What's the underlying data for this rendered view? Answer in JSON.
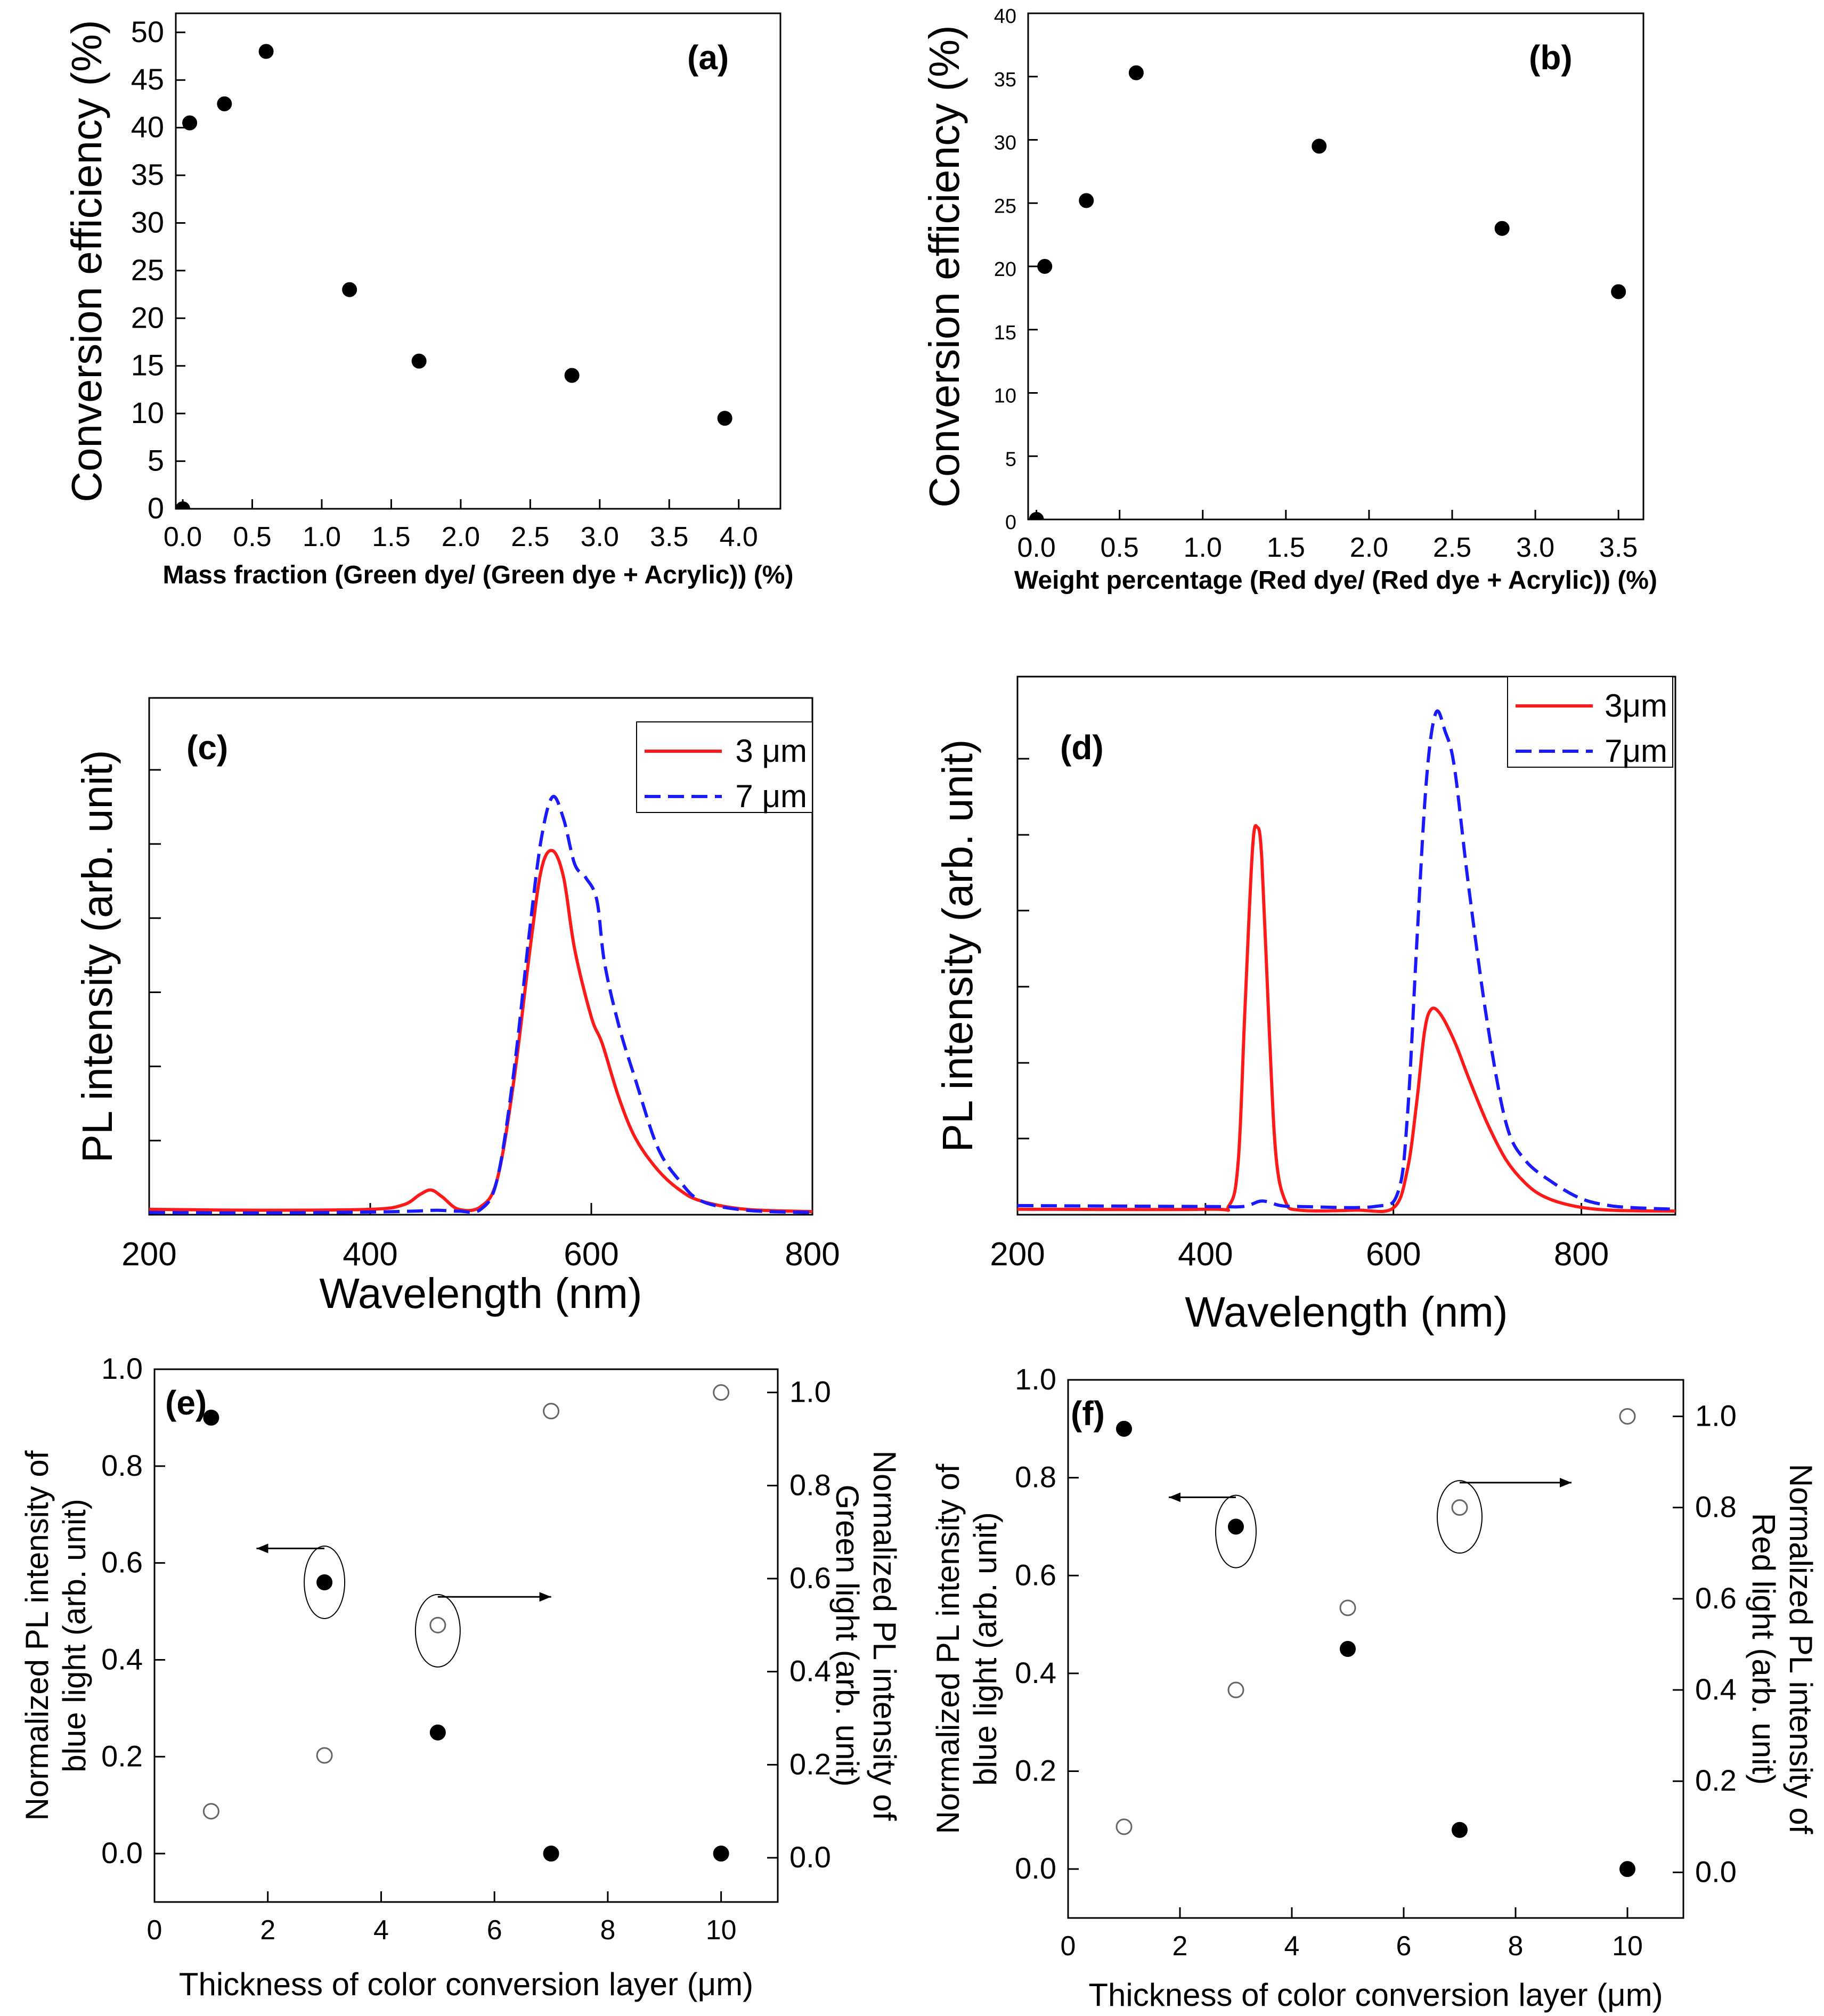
{
  "chart_data": [
    {
      "id": "a",
      "type": "scatter",
      "panel_label": "(a)",
      "xlabel": "Mass fraction (Green dye/ (Green dye + Acrylic)) (%)",
      "ylabel": "Conversion efficiency (%)",
      "xlim": [
        -0.05,
        4.3
      ],
      "ylim": [
        0,
        52
      ],
      "xticks": [
        0.0,
        0.5,
        1.0,
        1.5,
        2.0,
        2.5,
        3.0,
        3.5,
        4.0
      ],
      "xtick_labels": [
        "0.0",
        "0.5",
        "1.0",
        "1.5",
        "2.0",
        "2.5",
        "3.0",
        "3.5",
        "4.0"
      ],
      "yticks": [
        0,
        5,
        10,
        15,
        20,
        25,
        30,
        35,
        40,
        45,
        50
      ],
      "ytick_labels": [
        "0",
        "5",
        "10",
        "15",
        "20",
        "25",
        "30",
        "35",
        "40",
        "45",
        "50"
      ],
      "series": [
        {
          "name": "conversion",
          "marker": "filled",
          "x": [
            0.0,
            0.05,
            0.3,
            0.6,
            1.2,
            1.7,
            2.8,
            3.9
          ],
          "y": [
            0,
            40.5,
            42.5,
            48,
            23,
            15.5,
            14,
            9.5
          ]
        }
      ]
    },
    {
      "id": "b",
      "type": "scatter",
      "panel_label": "(b)",
      "xlabel": "Weight percentage (Red dye/ (Red dye + Acrylic)) (%)",
      "ylabel": "Conversion efficiency (%)",
      "xlim": [
        -0.05,
        3.65
      ],
      "ylim": [
        0,
        40
      ],
      "xticks": [
        0.0,
        0.5,
        1.0,
        1.5,
        2.0,
        2.5,
        3.0,
        3.5
      ],
      "xtick_labels": [
        "0.0",
        "0.5",
        "1.0",
        "1.5",
        "2.0",
        "2.5",
        "3.0",
        "3.5"
      ],
      "yticks": [
        0,
        5,
        10,
        15,
        20,
        25,
        30,
        35,
        40
      ],
      "ytick_labels": [
        "0",
        "5",
        "10",
        "15",
        "20",
        "25",
        "30",
        "35",
        "40"
      ],
      "series": [
        {
          "name": "conversion",
          "marker": "filled",
          "x": [
            0.0,
            0.05,
            0.3,
            0.6,
            1.7,
            2.8,
            3.5
          ],
          "y": [
            0,
            20,
            25.2,
            35.3,
            29.5,
            23,
            18
          ]
        }
      ]
    },
    {
      "id": "c",
      "type": "line",
      "panel_label": "(c)",
      "xlabel": "Wavelength (nm)",
      "ylabel": "PL intensity (arb. unit)",
      "xlim": [
        200,
        800
      ],
      "ylim": [
        0,
        1.15
      ],
      "xticks": [
        200,
        400,
        600,
        800
      ],
      "xtick_labels": [
        "200",
        "400",
        "600",
        "800"
      ],
      "yticks": [
        0.165,
        0.33,
        0.495,
        0.66,
        0.825,
        0.99
      ],
      "legend_position": "top-right",
      "series": [
        {
          "name": "3 μm",
          "color": "#ff1a1a",
          "dash": "solid",
          "x": [
            200,
            300,
            400,
            430,
            445,
            455,
            465,
            480,
            500,
            515,
            530,
            545,
            555,
            565,
            575,
            585,
            600,
            610,
            625,
            640,
            660,
            680,
            700,
            740,
            800
          ],
          "y": [
            0.012,
            0.01,
            0.012,
            0.022,
            0.045,
            0.055,
            0.04,
            0.012,
            0.018,
            0.08,
            0.3,
            0.6,
            0.77,
            0.81,
            0.75,
            0.59,
            0.44,
            0.38,
            0.26,
            0.17,
            0.1,
            0.055,
            0.03,
            0.012,
            0.007
          ]
        },
        {
          "name": "7 μm",
          "color": "#1a1aff",
          "dash": "dash",
          "x": [
            200,
            300,
            400,
            440,
            460,
            480,
            500,
            515,
            530,
            545,
            555,
            565,
            575,
            585,
            595,
            605,
            612,
            625,
            640,
            660,
            680,
            700,
            740,
            800
          ],
          "y": [
            0.005,
            0.004,
            0.006,
            0.008,
            0.01,
            0.008,
            0.012,
            0.08,
            0.32,
            0.65,
            0.84,
            0.93,
            0.88,
            0.78,
            0.75,
            0.7,
            0.56,
            0.42,
            0.3,
            0.15,
            0.075,
            0.03,
            0.01,
            0.005
          ]
        }
      ]
    },
    {
      "id": "d",
      "type": "line",
      "panel_label": "(d)",
      "xlabel": "Wavelength (nm)",
      "ylabel": "PL intensity (arb. unit)",
      "xlim": [
        200,
        900
      ],
      "ylim": [
        0,
        1.18
      ],
      "xticks": [
        200,
        400,
        600,
        800
      ],
      "xtick_labels": [
        "200",
        "400",
        "600",
        "800"
      ],
      "yticks": [
        0.167,
        0.333,
        0.5,
        0.667,
        0.833,
        1.0
      ],
      "legend_position": "top-right",
      "series": [
        {
          "name": "3μm",
          "color": "#ff1a1a",
          "dash": "solid",
          "x": [
            200,
            400,
            425,
            435,
            442,
            450,
            455,
            460,
            468,
            475,
            485,
            500,
            560,
            600,
            615,
            625,
            633,
            640,
            650,
            665,
            680,
            700,
            720,
            740,
            760,
            790,
            830,
            900
          ],
          "y": [
            0.012,
            0.012,
            0.02,
            0.12,
            0.45,
            0.8,
            0.85,
            0.78,
            0.4,
            0.13,
            0.03,
            0.01,
            0.01,
            0.015,
            0.1,
            0.25,
            0.4,
            0.45,
            0.44,
            0.38,
            0.3,
            0.2,
            0.12,
            0.07,
            0.04,
            0.02,
            0.01,
            0.008
          ]
        },
        {
          "name": "7μm",
          "color": "#1a1aff",
          "dash": "dash",
          "x": [
            200,
            400,
            440,
            460,
            480,
            500,
            580,
            605,
            615,
            625,
            635,
            645,
            655,
            665,
            680,
            700,
            720,
            740,
            770,
            800,
            830,
            860,
            900
          ],
          "y": [
            0.02,
            0.018,
            0.018,
            0.03,
            0.02,
            0.018,
            0.018,
            0.05,
            0.22,
            0.6,
            0.95,
            1.1,
            1.06,
            0.98,
            0.72,
            0.42,
            0.2,
            0.12,
            0.07,
            0.035,
            0.02,
            0.015,
            0.012
          ]
        }
      ]
    },
    {
      "id": "e",
      "type": "scatter",
      "panel_label": "(e)",
      "xlabel": "Thickness of color conversion layer (μm)",
      "ylabel": "Normalized PL intensity of|blue light (arb. unit)",
      "y2label": "Normalized PL intensity of|Green light (arb. unit)",
      "xlim": [
        0,
        11
      ],
      "ylim": [
        -0.1,
        1.0
      ],
      "y2lim": [
        -0.095,
        1.05
      ],
      "xticks": [
        0,
        2,
        4,
        6,
        8,
        10
      ],
      "xtick_labels": [
        "0",
        "2",
        "4",
        "6",
        "8",
        "10"
      ],
      "yticks": [
        0.0,
        0.2,
        0.4,
        0.6,
        0.8,
        1.0
      ],
      "ytick_labels": [
        "0.0",
        "0.2",
        "0.4",
        "0.6",
        "0.8",
        "1.0"
      ],
      "y2ticks": [
        0.0,
        0.2,
        0.4,
        0.6,
        0.8,
        1.0
      ],
      "y2tick_labels": [
        "0.0",
        "0.2",
        "0.4",
        "0.6",
        "0.8",
        "1.0"
      ],
      "series": [
        {
          "name": "blue light",
          "marker": "filled",
          "axis": "left",
          "x": [
            1,
            3,
            5,
            7,
            10
          ],
          "y": [
            0.9,
            0.56,
            0.25,
            0.0,
            0.0
          ]
        },
        {
          "name": "green light",
          "marker": "open",
          "axis": "right",
          "x": [
            1,
            3,
            5,
            7,
            10
          ],
          "y": [
            0.1,
            0.22,
            0.5,
            0.96,
            1.0
          ]
        }
      ]
    },
    {
      "id": "f",
      "type": "scatter",
      "panel_label": "(f)",
      "xlabel": "Thickness of color conversion layer (μm)",
      "ylabel": "Normalized PL intensity of|blue light (arb. unit)",
      "y2label": "Normalized PL intensity of|Red light (arb. unit)",
      "xlim": [
        0,
        11
      ],
      "ylim": [
        -0.1,
        1.0
      ],
      "y2lim": [
        -0.1,
        1.08
      ],
      "xticks": [
        0,
        2,
        4,
        6,
        8,
        10
      ],
      "xtick_labels": [
        "0",
        "2",
        "4",
        "6",
        "8",
        "10"
      ],
      "yticks": [
        0.0,
        0.2,
        0.4,
        0.6,
        0.8,
        1.0
      ],
      "ytick_labels": [
        "0.0",
        "0.2",
        "0.4",
        "0.6",
        "0.8",
        "1.0"
      ],
      "y2ticks": [
        0.0,
        0.2,
        0.4,
        0.6,
        0.8,
        1.0
      ],
      "y2tick_labels": [
        "0.0",
        "0.2",
        "0.4",
        "0.6",
        "0.8",
        "1.0"
      ],
      "series": [
        {
          "name": "blue light",
          "marker": "filled",
          "axis": "left",
          "x": [
            1,
            3,
            5,
            7,
            10
          ],
          "y": [
            0.9,
            0.7,
            0.45,
            0.08,
            0.0
          ]
        },
        {
          "name": "red light",
          "marker": "open",
          "axis": "right",
          "x": [
            1,
            3,
            5,
            7,
            10
          ],
          "y": [
            0.1,
            0.4,
            0.58,
            0.8,
            1.0
          ]
        }
      ]
    }
  ]
}
